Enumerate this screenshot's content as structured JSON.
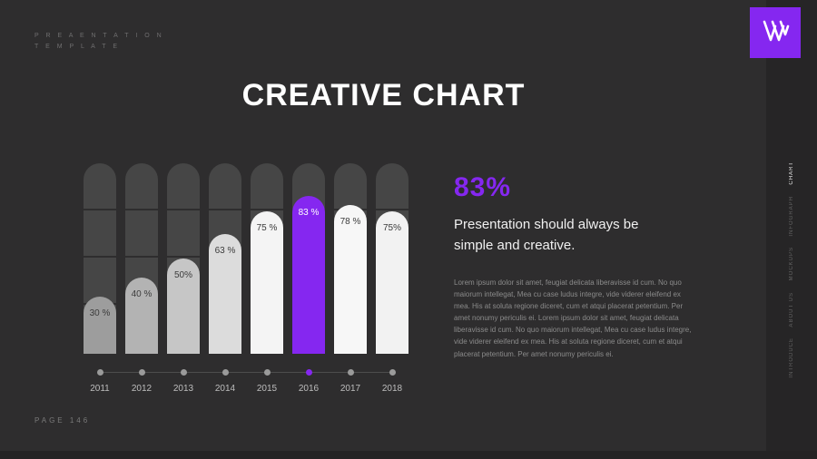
{
  "header": {
    "template_line1": "P R E A E N T A T I O N",
    "template_line2": "T E M P L A T E"
  },
  "title": "CREATIVE CHART",
  "sidebar": {
    "items": [
      {
        "label": "CHART",
        "active": true
      },
      {
        "label": "INFOGRAPH",
        "active": false
      },
      {
        "label": "MOCKUPS",
        "active": false
      },
      {
        "label": "ABOUT US",
        "active": false
      },
      {
        "label": "INTRODUCE",
        "active": false
      }
    ]
  },
  "info": {
    "value": "83%",
    "heading": "Presentation should always be simple and creative.",
    "body": "Lorem ipsum dolor sit amet, feugiat delicata liberavisse id cum. No quo maiorum intellegat, Mea cu case ludus integre, vide viderer eleifend ex mea. His at soluta regione diceret, cum et atqui placerat petentium. Per amet nonumy periculis ei. Lorem ipsum dolor sit amet, feugiat delicata liberavisse id cum. No quo maiorum intellegat, Mea cu case ludus integre, vide viderer eleifend ex mea. His at soluta regione diceret, cum et atqui placerat petentium. Per amet nonumy periculis ei."
  },
  "footer": {
    "page": "PAGE  146"
  },
  "chart_data": {
    "type": "bar",
    "title": "CREATIVE CHART",
    "categories": [
      "2011",
      "2012",
      "2013",
      "2014",
      "2015",
      "2016",
      "2017",
      "2018"
    ],
    "values": [
      30,
      40,
      50,
      63,
      75,
      83,
      78,
      75
    ],
    "labels": [
      "30 %",
      "40 %",
      "50%",
      "63 %",
      "75 %",
      "83 %",
      "78 %",
      "75%"
    ],
    "highlight_index": 5,
    "bar_colors": [
      "#9d9d9d",
      "#b3b3b3",
      "#c6c6c6",
      "#dcdcdc",
      "#f4f4f4",
      "#8527f0",
      "#f7f7f7",
      "#f2f2f2"
    ],
    "track_color": "#464646",
    "accent_color": "#8527f0",
    "xlabel": "",
    "ylabel": "",
    "ylim": [
      0,
      100
    ],
    "grid": false,
    "legend": "none"
  }
}
